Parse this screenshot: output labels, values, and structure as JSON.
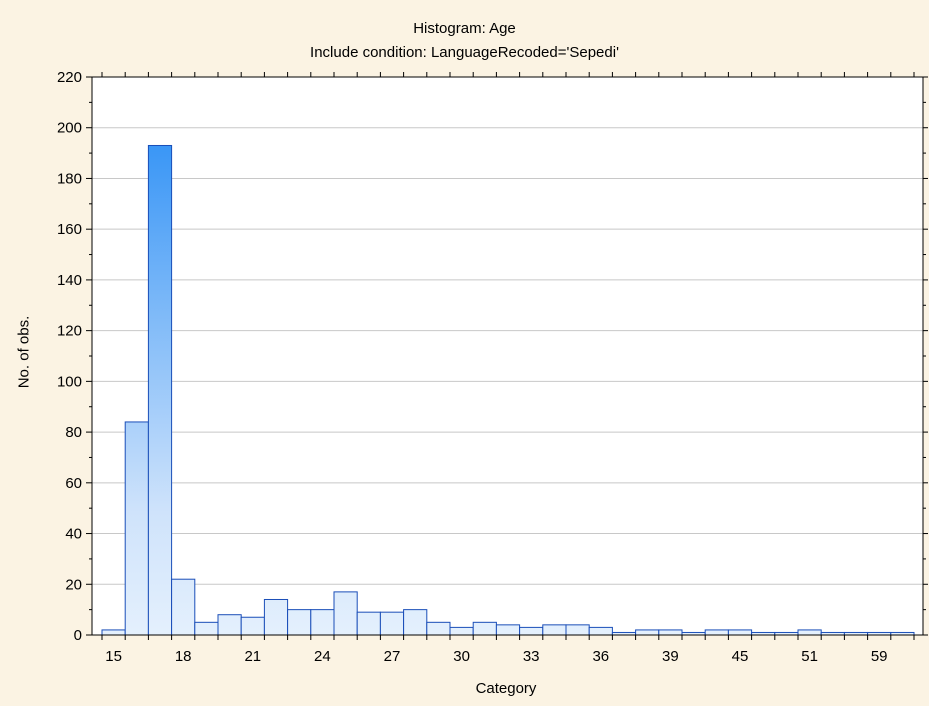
{
  "chart_data": {
    "type": "bar",
    "title": "Histogram: Age",
    "subtitle": "Include condition: LanguageRecoded='Sepedi'",
    "xlabel": "Category",
    "ylabel": "No. of obs.",
    "ylim": [
      0,
      220
    ],
    "yticks": [
      0,
      20,
      40,
      60,
      80,
      100,
      120,
      140,
      160,
      180,
      200,
      220
    ],
    "xtick_labels": [
      "15",
      "18",
      "21",
      "24",
      "27",
      "30",
      "33",
      "36",
      "39",
      "45",
      "51",
      "59"
    ],
    "grid": true,
    "values": [
      2,
      84,
      193,
      22,
      5,
      8,
      7,
      14,
      10,
      10,
      17,
      9,
      9,
      10,
      5,
      3,
      5,
      4,
      3,
      4,
      4,
      3,
      1,
      2,
      2,
      1,
      2,
      2,
      1,
      1,
      2,
      1,
      1,
      1,
      1
    ]
  },
  "colors": {
    "background": "#fbf3e3",
    "plot_background": "#ffffff",
    "bar_fill_light": "#e4f0fd",
    "bar_fill_dark": "#1e88f5",
    "bar_outline": "#1a4eb8"
  }
}
